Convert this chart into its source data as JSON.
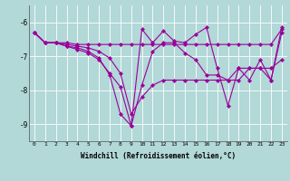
{
  "xlabel": "Windchill (Refroidissement éolien,°C)",
  "background_color": "#b2d8d8",
  "line_color": "#990099",
  "xlim": [
    -0.5,
    23.5
  ],
  "ylim": [
    -9.5,
    -5.5
  ],
  "yticks": [
    -9,
    -8,
    -7,
    -6
  ],
  "xticks": [
    0,
    1,
    2,
    3,
    4,
    5,
    6,
    7,
    8,
    9,
    10,
    11,
    12,
    13,
    14,
    15,
    16,
    17,
    18,
    19,
    20,
    21,
    22,
    23
  ],
  "series": {
    "x": [
      0,
      1,
      2,
      3,
      4,
      5,
      6,
      7,
      8,
      9,
      10,
      11,
      12,
      13,
      14,
      15,
      16,
      17,
      18,
      19,
      20,
      21,
      22,
      23
    ],
    "vals1": [
      -6.3,
      -6.6,
      -6.6,
      -6.6,
      -6.65,
      -6.65,
      -6.65,
      -6.65,
      -6.65,
      -6.65,
      -6.65,
      -6.65,
      -6.65,
      -6.65,
      -6.65,
      -6.65,
      -6.65,
      -6.65,
      -6.65,
      -6.65,
      -6.65,
      -6.65,
      -6.65,
      -6.2
    ],
    "vals2": [
      -6.3,
      -6.6,
      -6.6,
      -6.65,
      -6.7,
      -6.75,
      -6.85,
      -7.05,
      -7.5,
      -8.7,
      -8.2,
      -7.85,
      -7.7,
      -7.7,
      -7.7,
      -7.7,
      -7.7,
      -7.7,
      -7.7,
      -7.7,
      -7.35,
      -7.35,
      -7.35,
      -7.1
    ],
    "vals3": [
      -6.3,
      -6.6,
      -6.6,
      -6.7,
      -6.75,
      -6.85,
      -7.05,
      -7.55,
      -8.7,
      -9.05,
      -7.85,
      -6.85,
      -6.6,
      -6.6,
      -6.9,
      -7.1,
      -7.55,
      -7.55,
      -7.7,
      -7.35,
      -7.35,
      -7.35,
      -7.7,
      -6.3
    ],
    "vals4": [
      -6.3,
      -6.6,
      -6.6,
      -6.7,
      -6.8,
      -6.9,
      -7.1,
      -7.5,
      -7.9,
      -9.05,
      -6.2,
      -6.6,
      -6.25,
      -6.55,
      -6.6,
      -6.35,
      -6.15,
      -7.35,
      -8.45,
      -7.35,
      -7.7,
      -7.1,
      -7.7,
      -6.15
    ]
  }
}
